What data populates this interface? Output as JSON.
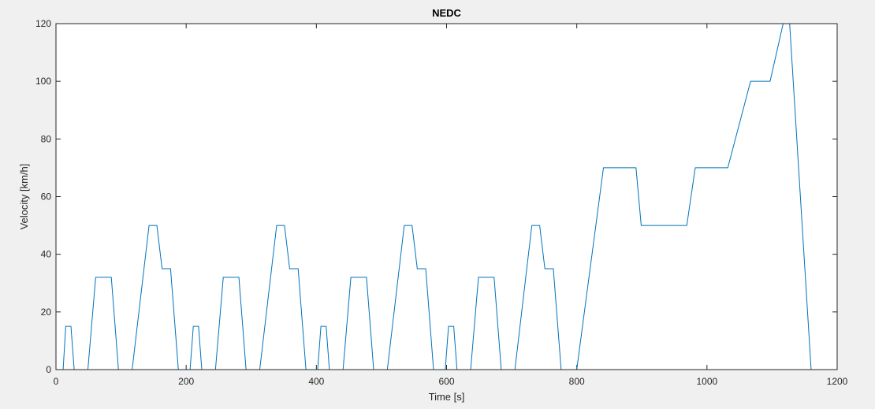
{
  "colors": {
    "figure_background": "#f0f0f0",
    "axes_background": "#ffffff",
    "axis_color": "#262626",
    "line_color": "#0072bd"
  },
  "chart_data": {
    "type": "line",
    "title": "NEDC",
    "xlabel": "Time [s]",
    "ylabel": "Velocity [km/h]",
    "xlim": [
      0,
      1200
    ],
    "ylim": [
      0,
      120
    ],
    "xticks": [
      0,
      200,
      400,
      600,
      800,
      1000,
      1200
    ],
    "yticks": [
      0,
      20,
      40,
      60,
      80,
      100,
      120
    ],
    "xtick_labels": [
      "0",
      "200",
      "400",
      "600",
      "800",
      "1000",
      "1200"
    ],
    "ytick_labels": [
      "0",
      "20",
      "40",
      "60",
      "80",
      "100",
      "120"
    ],
    "grid": false,
    "legend": null,
    "series": [
      {
        "color": "#0072bd",
        "x": [
          0,
          11,
          15,
          23,
          28,
          49,
          61,
          85,
          96,
          117,
          143,
          155,
          163,
          176,
          188,
          195,
          206,
          211,
          219,
          224,
          245,
          257,
          281,
          292,
          313,
          339,
          351,
          359,
          372,
          384,
          391,
          402,
          407,
          415,
          420,
          441,
          453,
          477,
          488,
          509,
          535,
          547,
          555,
          568,
          580,
          587,
          598,
          603,
          611,
          616,
          637,
          649,
          673,
          684,
          705,
          731,
          743,
          751,
          764,
          776,
          783,
          800,
          841,
          891,
          899,
          969,
          982,
          1032,
          1067,
          1097,
          1117,
          1127,
          1160,
          1170,
          1180
        ],
        "y": [
          0,
          0,
          15,
          15,
          0,
          0,
          32,
          32,
          0,
          0,
          50,
          50,
          35,
          35,
          0,
          0,
          0,
          15,
          15,
          0,
          0,
          32,
          32,
          0,
          0,
          50,
          50,
          35,
          35,
          0,
          0,
          0,
          15,
          15,
          0,
          0,
          32,
          32,
          0,
          0,
          50,
          50,
          35,
          35,
          0,
          0,
          0,
          15,
          15,
          0,
          0,
          32,
          32,
          0,
          0,
          50,
          50,
          35,
          35,
          0,
          0,
          0,
          70,
          70,
          50,
          50,
          70,
          70,
          100,
          100,
          120,
          120,
          0,
          0,
          0
        ]
      }
    ]
  }
}
